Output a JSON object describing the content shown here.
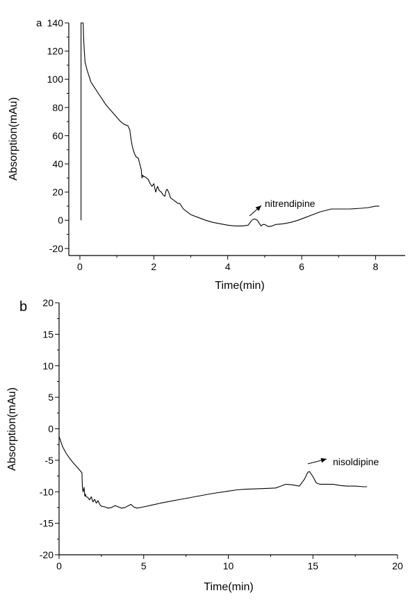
{
  "chart_data": [
    {
      "type": "line",
      "panel_label": "a",
      "xlabel": "Time(min)",
      "ylabel": "Absorption(mAu)",
      "xlim": [
        -0.3,
        8.8
      ],
      "ylim": [
        -25,
        140
      ],
      "x_ticks": [
        0,
        2,
        4,
        6,
        8
      ],
      "y_ticks": [
        -20,
        0,
        20,
        40,
        60,
        80,
        100,
        120,
        140
      ],
      "series": [
        {
          "x": [
            0.03,
            0.03,
            0.05,
            0.07,
            0.09,
            0.1,
            0.12,
            0.14,
            0.16,
            0.2,
            0.25,
            0.3,
            0.4,
            0.5,
            0.6,
            0.7,
            0.8,
            0.9,
            1.0,
            1.1,
            1.2,
            1.3,
            1.35,
            1.38,
            1.42,
            1.48,
            1.52,
            1.58,
            1.62,
            1.66,
            1.68,
            1.7,
            1.72,
            1.75,
            1.8,
            1.85,
            1.9,
            1.95,
            2.0,
            2.05,
            2.1,
            2.15,
            2.2,
            2.25,
            2.3,
            2.33,
            2.36,
            2.4,
            2.45,
            2.5,
            2.55,
            2.6,
            2.65,
            2.7,
            2.8,
            2.9,
            3.0,
            3.2,
            3.4,
            3.6,
            3.8,
            4.0,
            4.2,
            4.4,
            4.55,
            4.65,
            4.72,
            4.8,
            4.85,
            4.9,
            4.95,
            5.0,
            5.1,
            5.2,
            5.3,
            5.5,
            5.7,
            5.9,
            6.1,
            6.3,
            6.5,
            6.8,
            7.0,
            7.3,
            7.6,
            7.8,
            8.0,
            8.1
          ],
          "y": [
            0,
            140,
            140,
            140,
            140,
            130,
            120,
            112,
            110,
            106,
            102,
            98,
            94,
            90,
            86,
            82,
            79,
            76,
            73,
            70,
            68,
            67,
            64,
            58,
            52,
            47,
            45,
            44,
            40,
            36,
            30,
            32,
            31,
            31,
            30,
            29,
            26,
            24,
            26,
            20,
            24,
            21,
            20,
            18,
            17,
            21,
            22,
            20,
            16,
            15,
            14,
            13,
            12,
            12,
            8,
            6,
            4,
            2,
            0,
            -1.5,
            -2.5,
            -3.5,
            -4,
            -4,
            -3.5,
            0,
            1,
            0,
            -2,
            -4,
            -3,
            -3,
            -4.5,
            -4,
            -3,
            -2.5,
            -1.5,
            0,
            2,
            4,
            6,
            8,
            8,
            8,
            8.5,
            9,
            10,
            10
          ]
        }
      ],
      "annotations": [
        {
          "text": "nitrendipine",
          "x": 5.3,
          "y": 12
        }
      ]
    },
    {
      "type": "line",
      "panel_label": "b",
      "xlabel": "Time(min)",
      "ylabel": "Absorption(mAu)",
      "xlim": [
        0,
        20
      ],
      "ylim": [
        -20,
        20
      ],
      "x_ticks": [
        0,
        5,
        10,
        15,
        20
      ],
      "y_ticks": [
        -20,
        -15,
        -10,
        -5,
        0,
        5,
        10,
        15,
        20
      ],
      "series": [
        {
          "x": [
            0,
            0.2,
            0.4,
            0.6,
            0.8,
            1.0,
            1.2,
            1.35,
            1.38,
            1.42,
            1.48,
            1.52,
            1.56,
            1.6,
            1.7,
            1.8,
            1.9,
            2.0,
            2.1,
            2.2,
            2.3,
            2.4,
            2.5,
            2.7,
            2.9,
            3.1,
            3.3,
            3.5,
            3.7,
            3.9,
            4.1,
            4.25,
            4.4,
            4.6,
            5.0,
            5.5,
            6.0,
            7.0,
            8.0,
            9.0,
            10.0,
            10.5,
            11.0,
            12.0,
            12.8,
            13.0,
            13.4,
            13.8,
            14.2,
            14.5,
            14.7,
            14.8,
            15.0,
            15.2,
            15.4,
            15.8,
            16.2,
            16.6,
            17.0,
            17.5,
            18.0,
            18.2
          ],
          "y": [
            -1.2,
            -2.8,
            -3.8,
            -4.6,
            -5.3,
            -5.9,
            -6.5,
            -7.0,
            -9.5,
            -10.0,
            -9.3,
            -10.7,
            -10.4,
            -10.8,
            -10.9,
            -11.3,
            -10.8,
            -11.6,
            -11.2,
            -11.8,
            -11.4,
            -12.0,
            -12.3,
            -12.4,
            -12.6,
            -12.5,
            -12.2,
            -12.4,
            -12.6,
            -12.5,
            -12.2,
            -12.0,
            -12.4,
            -12.6,
            -12.4,
            -12.1,
            -11.8,
            -11.3,
            -10.8,
            -10.3,
            -9.9,
            -9.7,
            -9.6,
            -9.5,
            -9.4,
            -9.2,
            -8.8,
            -8.9,
            -9.1,
            -8.0,
            -6.9,
            -6.8,
            -7.6,
            -8.6,
            -8.8,
            -8.8,
            -8.8,
            -9.0,
            -9.1,
            -9.1,
            -9.2,
            -9.2
          ]
        }
      ],
      "annotations": [
        {
          "text": "nisoldipine",
          "x": 16,
          "y": -5
        }
      ]
    }
  ]
}
